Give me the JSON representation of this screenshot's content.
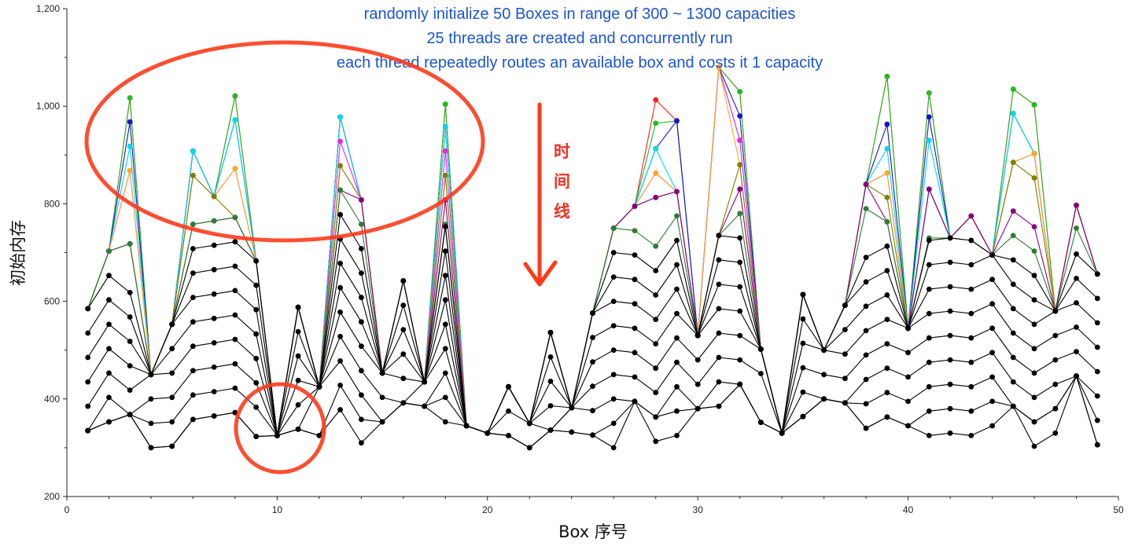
{
  "chart_data": {
    "type": "line",
    "xlabel": "Box 序号",
    "ylabel": "初始内存",
    "xlim": [
      0,
      50
    ],
    "ylim": [
      200,
      1200
    ],
    "x_ticks": [
      0,
      10,
      20,
      30,
      40,
      50
    ],
    "y_ticks": [
      200,
      400,
      600,
      800,
      1000,
      1200
    ],
    "x_tick_labels": [
      "0",
      "10",
      "20",
      "30",
      "40",
      "50"
    ],
    "y_tick_labels": [
      "200",
      "400",
      "600",
      "800",
      "1,000",
      "1,200"
    ],
    "grid": false,
    "annotations": [
      "randomly initialize 50 Boxes in range of 300 ~ 1300 capacities",
      "25 threads are created and concurrently run",
      "each thread repeatedly routes an available box and costs it 1 capacity"
    ],
    "timeline_label": [
      "时",
      "间",
      "线"
    ],
    "x": [
      1,
      2,
      3,
      4,
      5,
      6,
      7,
      8,
      9,
      10,
      11,
      12,
      13,
      14,
      15,
      16,
      17,
      18,
      19,
      20,
      21,
      22,
      23,
      24,
      25,
      26,
      27,
      28,
      29,
      30,
      31,
      32,
      33,
      34,
      35,
      36,
      37,
      38,
      39,
      40,
      41,
      42,
      43,
      44,
      45,
      46,
      47,
      48,
      49
    ],
    "series": [
      {
        "color": "#ff2020",
        "values": [
          585,
          703,
          1017,
          450,
          553,
          908,
          815,
          1021,
          683,
          325,
          588,
          425,
          978,
          808,
          453,
          642,
          435,
          1004,
          345,
          330,
          425,
          350,
          536,
          382,
          576,
          750,
          795,
          1013,
          970,
          530,
          1080,
          1030,
          502,
          330,
          614,
          500,
          592,
          840,
          1061,
          545,
          1027,
          730,
          775,
          695,
          1035,
          1003,
          580,
          797,
          656
        ]
      },
      {
        "color": "#22bb22",
        "values": [
          585,
          703,
          1017,
          450,
          553,
          908,
          815,
          1021,
          683,
          325,
          588,
          425,
          978,
          808,
          453,
          642,
          435,
          1004,
          345,
          330,
          425,
          350,
          536,
          382,
          576,
          750,
          795,
          965,
          970,
          530,
          1080,
          1030,
          502,
          330,
          614,
          500,
          592,
          840,
          1061,
          545,
          1027,
          730,
          775,
          695,
          1035,
          1003,
          580,
          797,
          656
        ]
      },
      {
        "color": "#1515cc",
        "values": [
          585,
          703,
          968,
          450,
          553,
          908,
          815,
          972,
          683,
          325,
          588,
          425,
          978,
          808,
          453,
          642,
          435,
          958,
          345,
          330,
          425,
          350,
          536,
          382,
          576,
          750,
          795,
          913,
          970,
          530,
          1080,
          980,
          502,
          330,
          614,
          500,
          592,
          840,
          963,
          545,
          978,
          730,
          775,
          695,
          985,
          903,
          580,
          797,
          656
        ]
      },
      {
        "color": "#00d8ee",
        "values": [
          585,
          703,
          918,
          450,
          553,
          908,
          815,
          972,
          683,
          325,
          588,
          425,
          978,
          808,
          453,
          642,
          435,
          958,
          345,
          330,
          425,
          350,
          536,
          382,
          576,
          750,
          795,
          913,
          825,
          530,
          1080,
          930,
          502,
          330,
          614,
          500,
          592,
          840,
          913,
          545,
          930,
          730,
          775,
          695,
          985,
          903,
          580,
          797,
          656
        ]
      },
      {
        "color": "#ee22ee",
        "values": [
          585,
          703,
          868,
          450,
          553,
          858,
          815,
          872,
          683,
          325,
          588,
          425,
          928,
          808,
          453,
          642,
          435,
          908,
          345,
          330,
          425,
          350,
          536,
          382,
          576,
          750,
          795,
          863,
          825,
          530,
          1080,
          930,
          502,
          330,
          614,
          500,
          592,
          840,
          863,
          545,
          830,
          730,
          775,
          695,
          885,
          903,
          580,
          797,
          656
        ]
      },
      {
        "color": "#ffaa22",
        "values": [
          585,
          703,
          868,
          450,
          553,
          858,
          815,
          872,
          683,
          325,
          588,
          425,
          878,
          808,
          453,
          642,
          435,
          858,
          345,
          330,
          425,
          350,
          536,
          382,
          576,
          750,
          795,
          863,
          825,
          530,
          1080,
          880,
          502,
          330,
          614,
          500,
          592,
          840,
          863,
          545,
          830,
          730,
          775,
          695,
          885,
          903,
          580,
          797,
          656
        ]
      },
      {
        "color": "#808000",
        "values": [
          585,
          703,
          718,
          450,
          553,
          858,
          815,
          772,
          683,
          325,
          588,
          425,
          878,
          808,
          453,
          642,
          435,
          858,
          345,
          330,
          425,
          350,
          536,
          382,
          576,
          750,
          795,
          813,
          825,
          530,
          735,
          880,
          502,
          330,
          614,
          500,
          592,
          840,
          813,
          545,
          830,
          730,
          775,
          695,
          885,
          853,
          580,
          797,
          656
        ]
      },
      {
        "color": "#880088",
        "values": [
          585,
          703,
          718,
          450,
          553,
          758,
          765,
          772,
          683,
          325,
          588,
          425,
          828,
          808,
          453,
          642,
          435,
          808,
          345,
          330,
          425,
          350,
          536,
          382,
          576,
          750,
          795,
          813,
          825,
          530,
          735,
          830,
          502,
          330,
          614,
          500,
          592,
          840,
          763,
          545,
          830,
          730,
          775,
          695,
          785,
          753,
          580,
          797,
          656
        ]
      },
      {
        "color": "#2e7d32",
        "values": [
          585,
          703,
          718,
          450,
          553,
          758,
          765,
          772,
          683,
          325,
          588,
          425,
          828,
          758,
          453,
          642,
          435,
          758,
          345,
          330,
          425,
          350,
          536,
          382,
          576,
          750,
          745,
          713,
          775,
          530,
          735,
          780,
          502,
          330,
          614,
          500,
          592,
          790,
          763,
          545,
          730,
          730,
          725,
          695,
          735,
          703,
          580,
          750,
          656
        ]
      },
      {
        "color": "#000000",
        "values": [
          585,
          653,
          618,
          450,
          553,
          708,
          715,
          722,
          683,
          325,
          588,
          425,
          778,
          708,
          453,
          642,
          435,
          753,
          345,
          330,
          425,
          350,
          536,
          382,
          576,
          700,
          695,
          663,
          725,
          530,
          735,
          730,
          502,
          330,
          614,
          500,
          592,
          690,
          713,
          545,
          725,
          730,
          725,
          695,
          685,
          653,
          580,
          697,
          656
        ]
      },
      {
        "color": "#000000",
        "values": [
          535,
          603,
          568,
          450,
          553,
          658,
          665,
          672,
          633,
          325,
          588,
          425,
          728,
          658,
          453,
          592,
          435,
          703,
          345,
          330,
          425,
          350,
          536,
          382,
          576,
          650,
          645,
          613,
          675,
          530,
          685,
          680,
          502,
          330,
          614,
          500,
          592,
          640,
          663,
          545,
          675,
          680,
          675,
          695,
          635,
          603,
          580,
          647,
          606
        ]
      },
      {
        "color": "#000000",
        "values": [
          485,
          553,
          518,
          450,
          553,
          608,
          615,
          622,
          583,
          325,
          538,
          425,
          678,
          608,
          453,
          542,
          435,
          653,
          345,
          330,
          425,
          350,
          486,
          382,
          576,
          600,
          595,
          563,
          625,
          530,
          635,
          630,
          502,
          330,
          564,
          500,
          542,
          590,
          613,
          545,
          625,
          630,
          625,
          645,
          585,
          553,
          580,
          597,
          556
        ]
      },
      {
        "color": "#000000",
        "values": [
          435,
          503,
          468,
          450,
          503,
          558,
          565,
          572,
          533,
          325,
          488,
          425,
          628,
          558,
          453,
          492,
          435,
          603,
          345,
          330,
          425,
          350,
          436,
          382,
          526,
          550,
          545,
          513,
          575,
          530,
          585,
          580,
          502,
          330,
          514,
          500,
          492,
          540,
          563,
          545,
          575,
          580,
          575,
          595,
          535,
          503,
          530,
          547,
          506
        ]
      },
      {
        "color": "#000000",
        "values": [
          385,
          453,
          418,
          450,
          453,
          508,
          515,
          522,
          483,
          325,
          438,
          425,
          578,
          508,
          453,
          442,
          435,
          553,
          345,
          330,
          425,
          350,
          386,
          382,
          476,
          500,
          495,
          463,
          525,
          480,
          535,
          530,
          502,
          330,
          464,
          450,
          442,
          490,
          513,
          495,
          525,
          530,
          525,
          545,
          485,
          453,
          480,
          497,
          456
        ]
      },
      {
        "color": "#000000",
        "values": [
          335,
          403,
          368,
          400,
          403,
          458,
          465,
          472,
          433,
          325,
          388,
          425,
          528,
          458,
          403,
          392,
          435,
          503,
          345,
          330,
          375,
          350,
          336,
          382,
          426,
          450,
          445,
          413,
          475,
          430,
          485,
          480,
          452,
          330,
          414,
          400,
          392,
          440,
          463,
          445,
          475,
          480,
          475,
          495,
          435,
          403,
          430,
          447,
          406
        ]
      },
      {
        "color": "#000000",
        "values": [
          335,
          353,
          368,
          350,
          353,
          408,
          415,
          422,
          383,
          325,
          338,
          425,
          478,
          408,
          353,
          392,
          385,
          453,
          345,
          330,
          325,
          300,
          336,
          382,
          376,
          400,
          395,
          363,
          425,
          380,
          435,
          430,
          352,
          330,
          364,
          400,
          392,
          390,
          413,
          395,
          425,
          430,
          425,
          445,
          385,
          353,
          380,
          447,
          356
        ]
      },
      {
        "color": "#000000",
        "values": [
          335,
          353,
          368,
          300,
          303,
          358,
          365,
          372,
          323,
          325,
          338,
          325,
          428,
          358,
          353,
          392,
          385,
          403,
          345,
          330,
          325,
          300,
          336,
          332,
          326,
          350,
          395,
          363,
          375,
          380,
          385,
          430,
          352,
          330,
          364,
          400,
          392,
          340,
          363,
          345,
          375,
          380,
          375,
          395,
          385,
          353,
          380,
          447,
          306
        ]
      },
      {
        "color": "#000000",
        "values": [
          335,
          353,
          368,
          300,
          303,
          358,
          365,
          372,
          323,
          325,
          338,
          325,
          378,
          310,
          353,
          392,
          385,
          353,
          345,
          330,
          325,
          300,
          336,
          332,
          326,
          300,
          395,
          313,
          325,
          380,
          385,
          430,
          352,
          330,
          364,
          400,
          392,
          340,
          363,
          345,
          325,
          330,
          325,
          345,
          385,
          303,
          330,
          447,
          306
        ]
      }
    ]
  }
}
